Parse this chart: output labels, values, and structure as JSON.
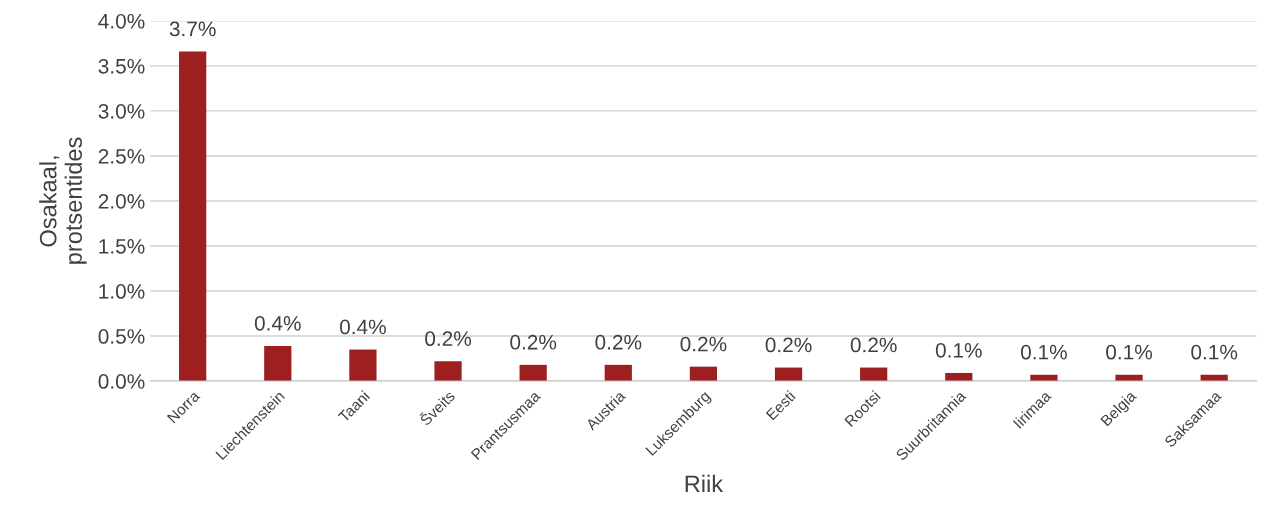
{
  "chart_data": {
    "type": "bar",
    "xlabel": "Riik",
    "ylabel": "Osakaal,\nprotsentides",
    "categories": [
      "Norra",
      "Liechtenstein",
      "Taani",
      "Šveits",
      "Prantsusmaa",
      "Austria",
      "Luksemburg",
      "Eesti",
      "Rootsi",
      "Suurbritannia",
      "Iirimaa",
      "Belgia",
      "Saksamaa"
    ],
    "values": [
      3.66,
      0.39,
      0.35,
      0.22,
      0.18,
      0.18,
      0.16,
      0.15,
      0.15,
      0.09,
      0.07,
      0.07,
      0.07
    ],
    "value_labels": [
      "3.7%",
      "0.4%",
      "0.4%",
      "0.2%",
      "0.2%",
      "0.2%",
      "0.2%",
      "0.2%",
      "0.2%",
      "0.1%",
      "0.1%",
      "0.1%",
      "0.1%"
    ],
    "color": "#9e1f20",
    "ylim": [
      0,
      4
    ],
    "yticks": [
      {
        "value": 0,
        "label": "0.0%"
      },
      {
        "value": 0.5,
        "label": "0.5%"
      },
      {
        "value": 1,
        "label": "1.0%"
      },
      {
        "value": 1.5,
        "label": "1.5%"
      },
      {
        "value": 2,
        "label": "2.0%"
      },
      {
        "value": 2.5,
        "label": "2.5%"
      },
      {
        "value": 3,
        "label": "3.0%"
      },
      {
        "value": 3.5,
        "label": "3.5%"
      },
      {
        "value": 4,
        "label": "4.0%"
      }
    ],
    "grid": "y"
  }
}
